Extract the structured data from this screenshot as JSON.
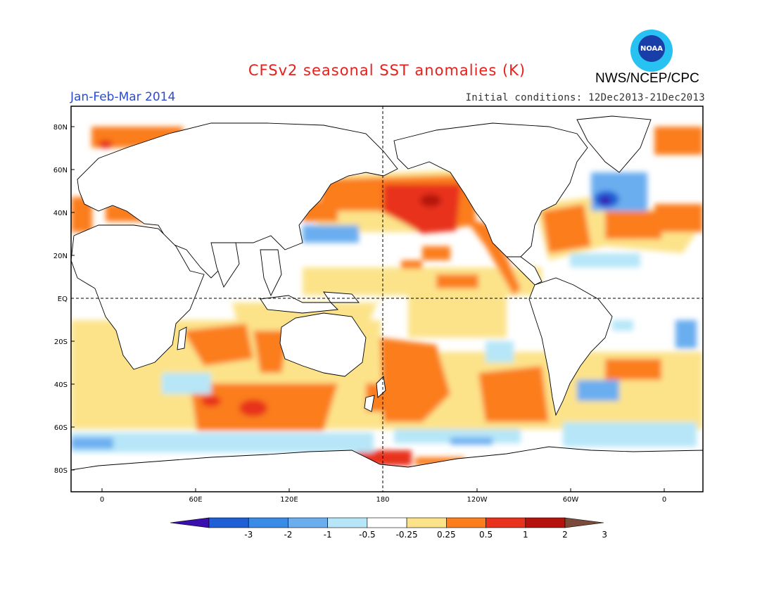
{
  "title": "CFSv2 seasonal SST anomalies (K)",
  "period": "Jan-Feb-Mar 2014",
  "initial_conditions": "Initial conditions: 12Dec2013-21Dec2013",
  "agency": "NWS/NCEP/CPC",
  "logo_text": "NOAA",
  "map": {
    "lat_ticks": [
      "80N",
      "60N",
      "40N",
      "20N",
      "EQ",
      "20S",
      "40S",
      "60S",
      "80S"
    ],
    "lon_ticks": [
      "0",
      "60E",
      "120E",
      "180",
      "120W",
      "60W",
      "0"
    ]
  },
  "colorbar": {
    "labels": [
      "-3",
      "-2",
      "-1",
      "-0.5",
      "-0.25",
      "0.25",
      "0.5",
      "1",
      "2",
      "3"
    ],
    "colors": [
      "#3a0fb0",
      "#1f5fd6",
      "#3a8be6",
      "#6aaef0",
      "#b6e6f8",
      "#ffffff",
      "#fce38a",
      "#fb7d1c",
      "#e8321d",
      "#b5120e",
      "#7a4a3a"
    ]
  }
}
